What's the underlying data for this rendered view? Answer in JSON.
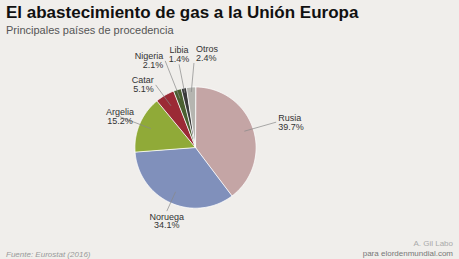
{
  "chart_data": {
    "type": "pie",
    "title": "El abastecimiento de gas a la Unión Europa",
    "subtitle": "Principales países de procedencia",
    "source": "Fuente: Eurostat (2016)",
    "annotations": [
      "A. Gil Labo",
      "para elordenmundial.com"
    ],
    "categories": [
      "Rusia",
      "Noruega",
      "Argelia",
      "Catar",
      "Nigeria",
      "Libia",
      "Otros"
    ],
    "values": [
      39.7,
      34.1,
      15.2,
      5.1,
      2.1,
      1.4,
      2.4
    ],
    "value_labels": [
      "39.7%",
      "34.1%",
      "15.2%",
      "5.1%",
      "2.1%",
      "1.4%",
      "2.4%"
    ],
    "colors": [
      "#c4a5a5",
      "#8090bb",
      "#90aa38",
      "#9b2a35",
      "#4a6030",
      "#3a3a3a",
      "#b5b5b0"
    ],
    "data_labels": true
  }
}
